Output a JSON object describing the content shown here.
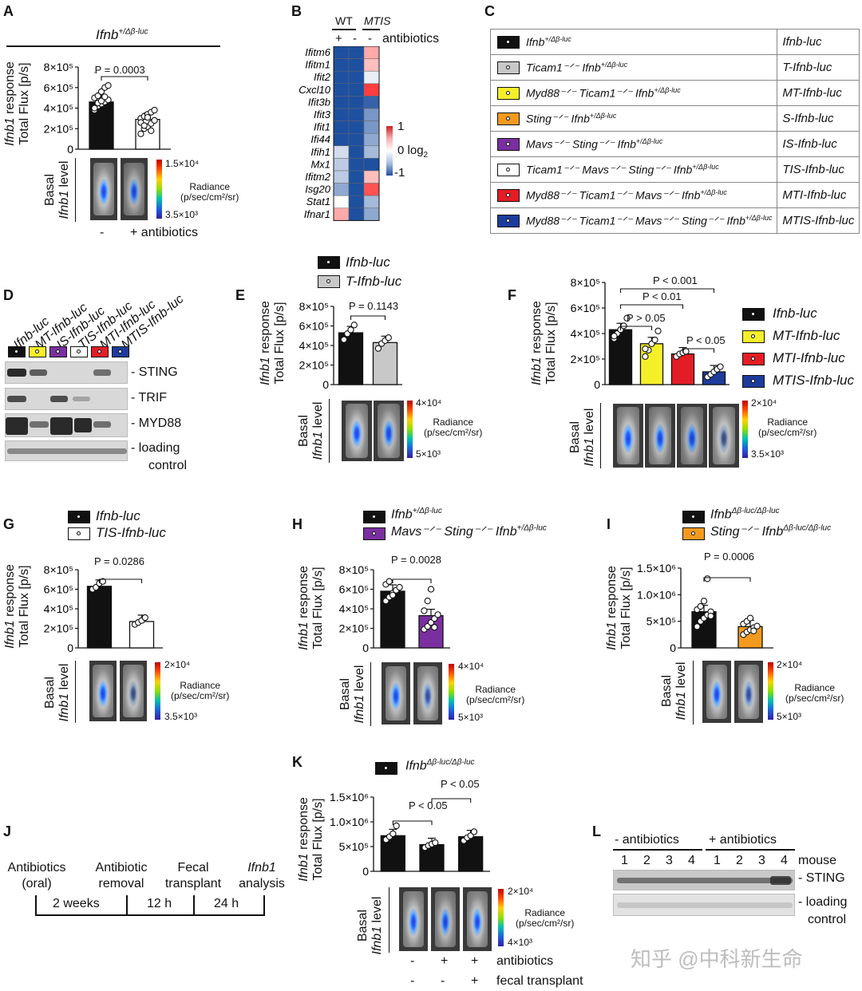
{
  "panels": {
    "A": {
      "letter": "A",
      "genotype": "Ifnb",
      "genotype_sup": "+/Δβ-luc",
      "ylabel_gene": "Ifnb1",
      "ylabel_rest": " response",
      "ylabel2": "Total Flux [p/s]",
      "pvalue": "P = 0.0003",
      "basal": "Basal",
      "basal_gene": "Ifnb1",
      "basal_rest": " level",
      "radiance": "Radiance",
      "radiance_unit": "(p/sec/cm²/sr)",
      "scale_max": "1.5×10⁴",
      "scale_min": "3.5×10³",
      "x_minus": "-",
      "x_plus": "+ antibiotics"
    },
    "B": {
      "letter": "B",
      "wt": "WT",
      "mtis": "MTIS",
      "plus": "+",
      "minus1": "-",
      "minus2": "-",
      "antibiotics": "antibiotics",
      "scale_1": "1",
      "scale_0": "0",
      "scale_log": "log",
      "scale_log_sub": "2",
      "scale_m1": "-1"
    },
    "C": {
      "letter": "C",
      "rows": [
        {
          "genotype": "Ifnb",
          "sup": "+/Δβ-luc",
          "prefix": "",
          "short": "Ifnb-luc",
          "color": "#111111"
        },
        {
          "genotype": "Ticam1⁻ᐟ⁻ Ifnb",
          "sup": "+/Δβ-luc",
          "prefix": "",
          "short": "T-Ifnb-luc",
          "color": "#c8c8c8"
        },
        {
          "genotype": "Myd88⁻ᐟ⁻ Ticam1⁻ᐟ⁻ Ifnb",
          "sup": "+/Δβ-luc",
          "prefix": "",
          "short": "MT-Ifnb-luc",
          "color": "#f5ef2a"
        },
        {
          "genotype": "Sting⁻ᐟ⁻ Ifnb",
          "sup": "+/Δβ-luc",
          "prefix": "",
          "short": "S-Ifnb-luc",
          "color": "#f39a1e"
        },
        {
          "genotype": "Mavs⁻ᐟ⁻ Sting⁻ᐟ⁻ Ifnb",
          "sup": "+/Δβ-luc",
          "prefix": "",
          "short": "IS-Ifnb-luc",
          "color": "#7a2fa0"
        },
        {
          "genotype": "Ticam1⁻ᐟ⁻ Mavs⁻ᐟ⁻ Sting⁻ᐟ⁻ Ifnb",
          "sup": "+/Δβ-luc",
          "prefix": "",
          "short": "TIS-Ifnb-luc",
          "color": "#ffffff"
        },
        {
          "genotype": "Myd88⁻ᐟ⁻ Ticam1⁻ᐟ⁻ Mavs⁻ᐟ⁻ Ifnb",
          "sup": "+/Δβ-luc",
          "prefix": "",
          "short": "MTI-Ifnb-luc",
          "color": "#e31d25"
        },
        {
          "genotype": "Myd88⁻ᐟ⁻ Ticam1⁻ᐟ⁻ Mavs⁻ᐟ⁻ Sting⁻ᐟ⁻ Ifnb",
          "sup": "+/Δβ-luc",
          "prefix": "",
          "short": "MTIS-Ifnb-luc",
          "color": "#1c3c9c"
        }
      ]
    },
    "D": {
      "letter": "D",
      "lanes": [
        "Ifnb-luc",
        "MT-Ifnb-luc",
        "IS-Ifnb-luc",
        "TIS-Ifnb-luc",
        "MTI-Ifnb-luc",
        "MTIS-Ifnb-luc"
      ],
      "lane_colors": [
        "#111111",
        "#f5ef2a",
        "#7a2fa0",
        "#ffffff",
        "#e31d25",
        "#1c3c9c"
      ],
      "blots": [
        "- STING",
        "- TRIF",
        "- MYD88",
        "- loading",
        "control"
      ]
    },
    "E": {
      "letter": "E",
      "legend": [
        "Ifnb-luc",
        "T-Ifnb-luc"
      ],
      "ylabel_gene": "Ifnb1",
      "ylabel_rest": " response",
      "ylabel2": "Total Flux [p/s]",
      "pvalue": "P = 0.1143",
      "basal": "Basal",
      "basal_gene": "Ifnb1",
      "basal_rest": " level",
      "radiance": "Radiance",
      "radiance_unit": "(p/sec/cm²/sr)",
      "scale_max": "4×10⁴",
      "scale_min": "5×10³"
    },
    "F": {
      "letter": "F",
      "legend": [
        "Ifnb-luc",
        "MT-Ifnb-luc",
        "MTI-Ifnb-luc",
        "MTIS-Ifnb-luc"
      ],
      "ylabel_gene": "Ifnb1",
      "ylabel_rest": " response",
      "ylabel2": "Total Flux [p/s]",
      "p1": "P < 0.001",
      "p2": "P < 0.01",
      "p3": "P > 0.05",
      "p4": "P < 0.05",
      "basal": "Basal",
      "basal_gene": "Ifnb1",
      "basal_rest": " level",
      "radiance": "Radiance",
      "radiance_unit": "(p/sec/cm²/sr)",
      "scale_max": "2×10⁴",
      "scale_min": "3.5×10³"
    },
    "G": {
      "letter": "G",
      "legend": [
        "Ifnb-luc",
        "TIS-Ifnb-luc"
      ],
      "ylabel_gene": "Ifnb1",
      "ylabel_rest": " response",
      "ylabel2": "Total Flux [p/s]",
      "pvalue": "P = 0.0286",
      "basal": "Basal",
      "basal_gene": "Ifnb1",
      "basal_rest": " level",
      "radiance": "Radiance",
      "radiance_unit": "(p/sec/cm²/sr)",
      "scale_max": "2×10⁴",
      "scale_min": "3.5×10³"
    },
    "H": {
      "letter": "H",
      "legend1": "Ifnb",
      "legend1_sup": "+/Δβ-luc",
      "legend2": "Mavs⁻ᐟ⁻ Sting⁻ᐟ⁻ Ifnb",
      "legend2_sup": "+/Δβ-luc",
      "ylabel_gene": "Ifnb1",
      "ylabel_rest": " response",
      "ylabel2": "Total Flux [p/s]",
      "pvalue": "P = 0.0028",
      "basal": "Basal",
      "basal_gene": "Ifnb1",
      "basal_rest": " level",
      "radiance": "Radiance",
      "radiance_unit": "(p/sec/cm²/sr)",
      "scale_max": "4×10⁴",
      "scale_min": "5×10³"
    },
    "I": {
      "letter": "I",
      "legend1": "Ifnb",
      "legend1_sup": "Δβ-luc/Δβ-luc",
      "legend2": "Sting⁻ᐟ⁻ Ifnb",
      "legend2_sup": "Δβ-luc/Δβ-luc",
      "ylabel_gene": "Ifnb1",
      "ylabel_rest": " response",
      "ylabel2": "Total Flux [p/s]",
      "pvalue": "P = 0.0006",
      "basal": "Basal",
      "basal_gene": "Ifnb1",
      "basal_rest": " level",
      "radiance": "Radiance",
      "radiance_unit": "(p/sec/cm²/sr)",
      "scale_max": "2×10⁴",
      "scale_min": "5×10³"
    },
    "J": {
      "letter": "J",
      "step1a": "Antibiotics",
      "step1b": "(oral)",
      "step2a": "Antibiotic",
      "step2b": "removal",
      "step3a": "Fecal",
      "step3b": "transplant",
      "step4a": "Ifnb1",
      "step4b": "analysis",
      "d1": "2 weeks",
      "d2": "12 h",
      "d3": "24 h"
    },
    "K": {
      "letter": "K",
      "legend1": "Ifnb",
      "legend1_sup": "Δβ-luc/Δβ-luc",
      "ylabel_gene": "Ifnb1",
      "ylabel_rest": " response",
      "ylabel2": "Total Flux [p/s]",
      "p1": "P < 0.05",
      "p2": "P < 0.05",
      "basal": "Basal",
      "basal_gene": "Ifnb1",
      "basal_rest": " level",
      "radiance": "Radiance",
      "radiance_unit": "(p/sec/cm²/sr)",
      "scale_max": "2×10⁴",
      "scale_min": "4×10³",
      "row1": [
        "-",
        "+",
        "+"
      ],
      "row1_label": "antibiotics",
      "row2": [
        "-",
        "-",
        "+"
      ],
      "row2_label": "fecal transplant"
    },
    "L": {
      "letter": "L",
      "minus_ab": "- antibiotics",
      "plus_ab": "+ antibiotics",
      "mice": [
        "1",
        "2",
        "3",
        "4",
        "1",
        "2",
        "3",
        "4"
      ],
      "mouse_label": "mouse",
      "sting": "- STING",
      "loading": "- loading",
      "control": "control"
    }
  },
  "watermark": "知乎 @中科新生命",
  "chart_data": [
    {
      "id": "A",
      "type": "bar",
      "categories": [
        "-",
        "+ antibiotics"
      ],
      "values": [
        460000,
        290000
      ],
      "colors": [
        "#111111",
        "#ffffff"
      ],
      "points": [
        [
          380000,
          420000,
          440000,
          460000,
          480000,
          500000,
          520000,
          560000,
          600000,
          620000,
          400000,
          450000,
          470000,
          510000
        ],
        [
          150000,
          200000,
          220000,
          250000,
          280000,
          300000,
          320000,
          340000,
          360000,
          380000,
          260000,
          230000,
          310000,
          180000
        ]
      ],
      "yticks": [
        "0",
        "2×10⁵",
        "4×10⁵",
        "6×10⁵",
        "8×10⁵"
      ],
      "ylim": [
        0,
        800000
      ]
    },
    {
      "id": "B",
      "type": "heatmap",
      "rows": [
        "Ifitm6",
        "Ifitm1",
        "Ifit2",
        "Cxcl10",
        "Ifit3b",
        "Ifit3",
        "Ifit1",
        "Ifi44",
        "Ifih1",
        "Mx1",
        "Ifitm2",
        "Isg20",
        "Stat1",
        "Ifnar1"
      ],
      "columns": [
        "WT +",
        "WT -",
        "MTIS -"
      ],
      "values": [
        [
          -1,
          -1,
          0.4
        ],
        [
          -1,
          -1,
          0.3
        ],
        [
          -1,
          -1,
          -0.1
        ],
        [
          -1,
          -1,
          0.9
        ],
        [
          -1,
          -1,
          -0.9
        ],
        [
          -1,
          -1,
          -0.6
        ],
        [
          -1,
          -1,
          -0.6
        ],
        [
          -1,
          -1,
          -0.5
        ],
        [
          -0.2,
          -1,
          -0.4
        ],
        [
          -0.3,
          -1,
          -1
        ],
        [
          -0.3,
          -1,
          0.3
        ],
        [
          -0.5,
          -1,
          0.8
        ],
        [
          0,
          -1,
          -0.4
        ],
        [
          0.4,
          -1,
          -0.5
        ]
      ],
      "range": [
        -1,
        1
      ]
    },
    {
      "id": "E",
      "type": "bar",
      "categories": [
        "Ifnb-luc",
        "T-Ifnb-luc"
      ],
      "values": [
        530000,
        430000
      ],
      "colors": [
        "#111111",
        "#c8c8c8"
      ],
      "points": [
        [
          460000,
          520000,
          560000,
          610000
        ],
        [
          370000,
          420000,
          450000,
          480000
        ]
      ],
      "yticks": [
        "0",
        "2×10⁵",
        "4×10⁵",
        "6×10⁵",
        "8×10⁵"
      ],
      "ylim": [
        0,
        800000
      ]
    },
    {
      "id": "F",
      "type": "bar",
      "categories": [
        "Ifnb-luc",
        "MT-Ifnb-luc",
        "MTI-Ifnb-luc",
        "MTIS-Ifnb-luc"
      ],
      "values": [
        430000,
        320000,
        240000,
        100000
      ],
      "colors": [
        "#111111",
        "#f5ef2a",
        "#e31d25",
        "#1c3c9c"
      ],
      "points": [
        [
          360000,
          400000,
          430000,
          460000,
          520000,
          380000
        ],
        [
          220000,
          270000,
          320000,
          350000,
          420000,
          280000
        ],
        [
          220000,
          240000,
          250000,
          260000
        ],
        [
          60000,
          80000,
          100000,
          120000,
          140000
        ]
      ],
      "yticks": [
        "0",
        "2×10⁵",
        "4×10⁵",
        "6×10⁵",
        "8×10⁵"
      ],
      "ylim": [
        0,
        800000
      ]
    },
    {
      "id": "G",
      "type": "bar",
      "categories": [
        "Ifnb-luc",
        "TIS-Ifnb-luc"
      ],
      "values": [
        630000,
        270000
      ],
      "colors": [
        "#111111",
        "#ffffff"
      ],
      "points": [
        [
          600000,
          620000,
          660000,
          680000
        ],
        [
          240000,
          260000,
          280000,
          310000
        ]
      ],
      "yticks": [
        "0",
        "2×10⁵",
        "4×10⁵",
        "6×10⁵",
        "8×10⁵"
      ],
      "ylim": [
        0,
        800000
      ]
    },
    {
      "id": "H",
      "type": "bar",
      "categories": [
        "Ifnb+/Δβ-luc",
        "Mavs-/- Sting-/- Ifnb+/Δβ-luc"
      ],
      "values": [
        580000,
        330000
      ],
      "colors": [
        "#111111",
        "#7a2fa0"
      ],
      "points": [
        [
          480000,
          520000,
          560000,
          590000,
          620000,
          650000,
          680000,
          540000
        ],
        [
          190000,
          220000,
          260000,
          300000,
          340000,
          380000,
          480000,
          600000,
          210000
        ]
      ],
      "yticks": [
        "0",
        "2×10⁵",
        "4×10⁵",
        "6×10⁵",
        "8×10⁵"
      ],
      "ylim": [
        0,
        800000
      ]
    },
    {
      "id": "I",
      "type": "bar",
      "categories": [
        "IfnbΔβ-luc/Δβ-luc",
        "Sting-/- IfnbΔβ-luc/Δβ-luc"
      ],
      "values": [
        680000,
        400000
      ],
      "colors": [
        "#111111",
        "#f39a1e"
      ],
      "points": [
        [
          400000,
          500000,
          560000,
          620000,
          680000,
          720000,
          780000,
          880000,
          1300000,
          600000
        ],
        [
          250000,
          300000,
          340000,
          380000,
          410000,
          450000,
          500000,
          560000,
          320000
        ]
      ],
      "yticks": [
        "0",
        "5×10⁵",
        "1.0×10⁶",
        "1.5×10⁶"
      ],
      "ylim": [
        0,
        1500000
      ]
    },
    {
      "id": "K",
      "type": "bar",
      "categories": [
        "- / -",
        "+ / -",
        "+ / +"
      ],
      "values": [
        720000,
        540000,
        700000
      ],
      "colors": [
        "#111111",
        "#111111",
        "#111111"
      ],
      "points": [
        [
          640000,
          700000,
          760000,
          920000
        ],
        [
          480000,
          520000,
          550000,
          580000
        ],
        [
          620000,
          680000,
          720000,
          800000
        ]
      ],
      "yticks": [
        "0",
        "5×10⁵",
        "1.0×10⁶",
        "1.5×10⁶"
      ],
      "ylim": [
        0,
        1500000
      ]
    }
  ]
}
